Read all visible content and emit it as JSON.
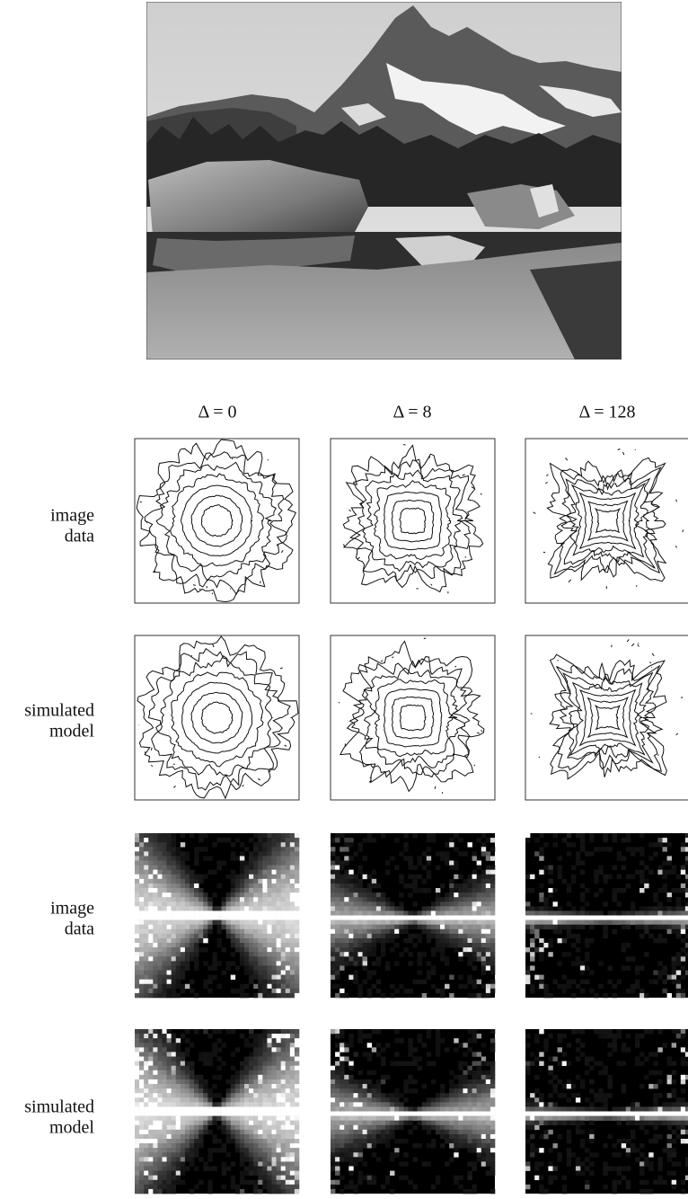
{
  "columns": [
    "Δ = 0",
    "Δ = 8",
    "Δ = 128"
  ],
  "rows": [
    {
      "lines": [
        "image",
        "data"
      ]
    },
    {
      "lines": [
        "simulated",
        "model"
      ]
    },
    {
      "lines": [
        "image",
        "data"
      ]
    },
    {
      "lines": [
        "simulated",
        "model"
      ]
    }
  ]
}
